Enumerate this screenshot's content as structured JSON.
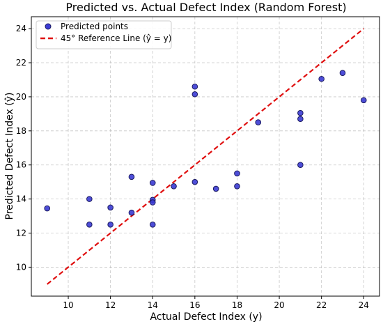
{
  "chart_data": {
    "type": "scatter",
    "title": "Predicted vs. Actual Defect Index (Random Forest)",
    "xlabel": "Actual Defect Index (y)",
    "ylabel": "Predicted Defect Index (ŷ)",
    "xlim": [
      8.25,
      24.75
    ],
    "ylim": [
      8.3,
      24.7
    ],
    "x_ticks": [
      10,
      12,
      14,
      16,
      18,
      20,
      22,
      24
    ],
    "y_ticks": [
      10,
      12,
      14,
      16,
      18,
      20,
      22,
      24
    ],
    "grid": true,
    "legend_position": "top-left",
    "series": [
      {
        "name": "Predicted points",
        "kind": "scatter",
        "color": "#3b3bd4",
        "edge_color": "#1a1a5e",
        "points": [
          {
            "x": 9,
            "y": 13.45
          },
          {
            "x": 11,
            "y": 14.0
          },
          {
            "x": 11,
            "y": 12.5
          },
          {
            "x": 12,
            "y": 13.5
          },
          {
            "x": 12,
            "y": 12.5
          },
          {
            "x": 13,
            "y": 15.3
          },
          {
            "x": 13,
            "y": 13.2
          },
          {
            "x": 14,
            "y": 14.95
          },
          {
            "x": 14,
            "y": 13.95
          },
          {
            "x": 14,
            "y": 13.8
          },
          {
            "x": 14,
            "y": 12.5
          },
          {
            "x": 15,
            "y": 14.75
          },
          {
            "x": 16,
            "y": 20.6
          },
          {
            "x": 16,
            "y": 20.15
          },
          {
            "x": 16,
            "y": 15.0
          },
          {
            "x": 17,
            "y": 14.6
          },
          {
            "x": 18,
            "y": 15.5
          },
          {
            "x": 18,
            "y": 14.75
          },
          {
            "x": 19,
            "y": 18.5
          },
          {
            "x": 21,
            "y": 19.05
          },
          {
            "x": 21,
            "y": 18.7
          },
          {
            "x": 21,
            "y": 16.0
          },
          {
            "x": 22,
            "y": 21.05
          },
          {
            "x": 23,
            "y": 21.4
          },
          {
            "x": 24,
            "y": 19.8
          }
        ]
      },
      {
        "name": "45° Reference Line (ŷ = y)",
        "kind": "line",
        "style": "dashed",
        "color": "#e01010",
        "x": [
          9,
          24
        ],
        "y": [
          9,
          24
        ]
      }
    ]
  }
}
